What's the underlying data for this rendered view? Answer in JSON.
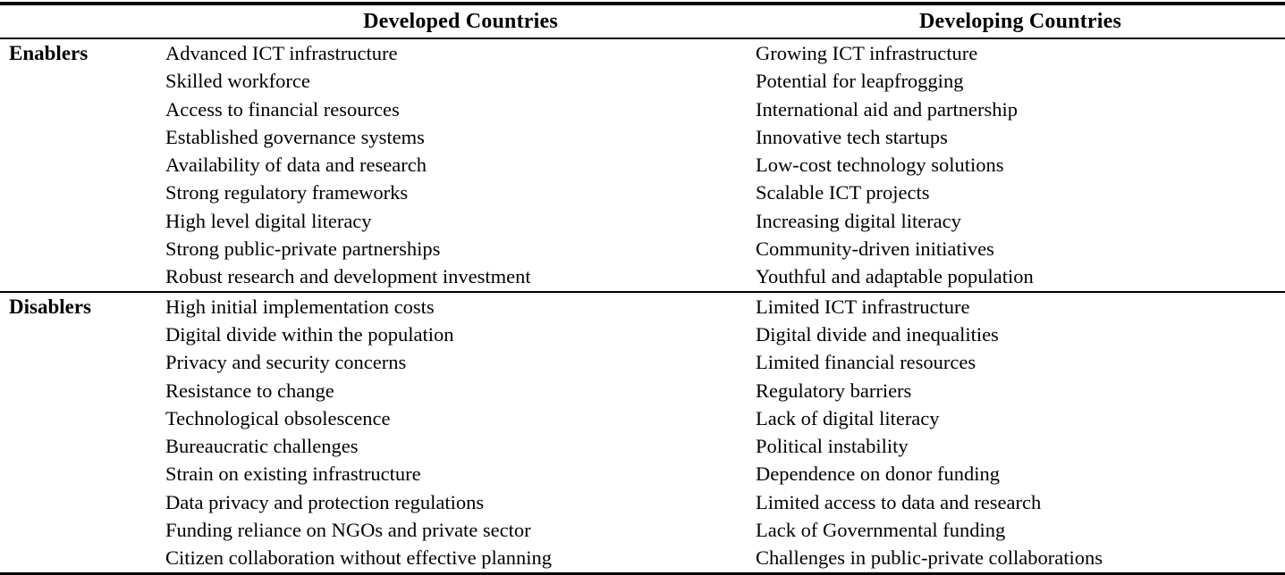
{
  "table": {
    "columns": [
      "Developed Countries",
      "Developing Countries"
    ],
    "sections": [
      {
        "label": "Enablers",
        "developed": [
          "Advanced ICT infrastructure",
          "Skilled workforce",
          "Access to financial resources",
          "Established governance systems",
          "Availability of data and research",
          "Strong regulatory frameworks",
          "High level digital literacy",
          "Strong public-private partnerships",
          "Robust research and development investment"
        ],
        "developing": [
          "Growing ICT infrastructure",
          "Potential for leapfrogging",
          "International aid and partnership",
          "Innovative tech startups",
          "Low-cost technology solutions",
          "Scalable ICT projects",
          "Increasing digital literacy",
          "Community-driven initiatives",
          "Youthful and adaptable population"
        ]
      },
      {
        "label": "Disablers",
        "developed": [
          "High initial implementation costs",
          "Digital divide within the population",
          "Privacy and security concerns",
          "Resistance to change",
          "Technological obsolescence",
          "Bureaucratic challenges",
          "Strain on existing infrastructure",
          "Data privacy and protection regulations",
          "Funding reliance on NGOs and private sector",
          "Citizen collaboration without effective planning"
        ],
        "developing": [
          "Limited ICT infrastructure",
          "Digital divide and inequalities",
          "Limited financial resources",
          "Regulatory barriers",
          "Lack of digital literacy",
          "Political instability",
          "Dependence on donor funding",
          "Limited access to data and research",
          "Lack of Governmental funding",
          "Challenges in public-private collaborations"
        ]
      }
    ]
  }
}
